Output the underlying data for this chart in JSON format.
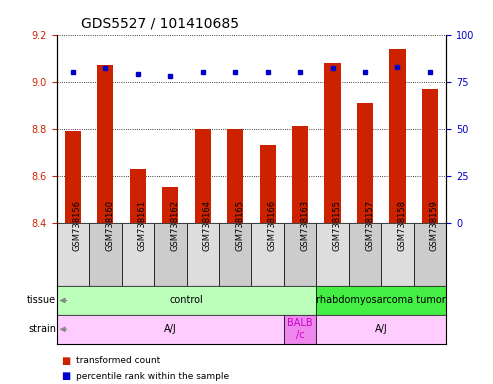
{
  "title": "GDS5527 / 101410685",
  "samples": [
    "GSM738156",
    "GSM738160",
    "GSM738161",
    "GSM738162",
    "GSM738164",
    "GSM738165",
    "GSM738166",
    "GSM738163",
    "GSM738155",
    "GSM738157",
    "GSM738158",
    "GSM738159"
  ],
  "transformed_counts": [
    8.79,
    9.07,
    8.63,
    8.55,
    8.8,
    8.8,
    8.73,
    8.81,
    9.08,
    8.91,
    9.14,
    8.97
  ],
  "percentile_ranks": [
    80,
    82,
    79,
    78,
    80,
    80,
    80,
    80,
    82,
    80,
    83,
    80
  ],
  "ylim_left": [
    8.4,
    9.2
  ],
  "ylim_right": [
    0,
    100
  ],
  "yticks_left": [
    8.4,
    8.6,
    8.8,
    9.0,
    9.2
  ],
  "yticks_right": [
    0,
    25,
    50,
    75,
    100
  ],
  "bar_color": "#cc2200",
  "dot_color": "#0000cc",
  "tissue_labels": [
    {
      "label": "control",
      "start": 0,
      "end": 7,
      "color": "#bbffbb"
    },
    {
      "label": "rhabdomyosarcoma tumor",
      "start": 8,
      "end": 11,
      "color": "#44ee44"
    }
  ],
  "strain_labels": [
    {
      "label": "A/J",
      "start": 0,
      "end": 6,
      "color": "#ffccff"
    },
    {
      "label": "BALB\n/c",
      "start": 7,
      "end": 7,
      "color": "#ee88ee"
    },
    {
      "label": "A/J",
      "start": 8,
      "end": 11,
      "color": "#ffccff"
    }
  ],
  "balb_text_color": "#cc00cc",
  "legend_items": [
    {
      "color": "#cc2200",
      "label": "transformed count"
    },
    {
      "color": "#0000cc",
      "label": "percentile rank within the sample"
    }
  ],
  "left_tick_color": "#cc2200",
  "right_tick_color": "#0000cc",
  "title_fontsize": 10,
  "tick_fontsize": 7,
  "sample_fontsize": 6,
  "annotation_fontsize": 7
}
